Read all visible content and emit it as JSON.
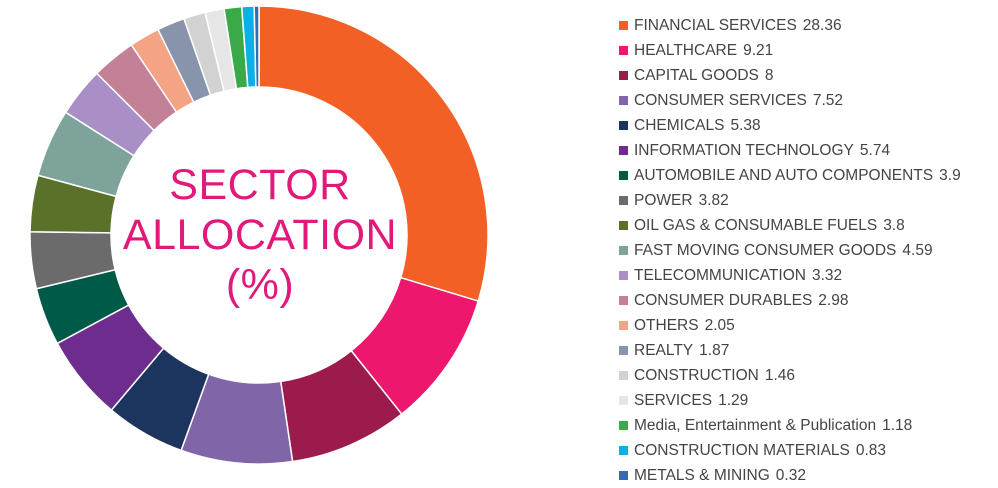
{
  "chart_data": {
    "type": "pie",
    "donut": true,
    "title": [
      "SECTOR",
      "ALLOCATION",
      "(%)"
    ],
    "legend_position": "right",
    "slices": [
      {
        "label": "FINANCIAL SERVICES",
        "value": 28.36,
        "color": "#f26025"
      },
      {
        "label": "HEALTHCARE",
        "value": 9.21,
        "color": "#ed176d"
      },
      {
        "label": "CAPITAL GOODS",
        "value": 8,
        "color": "#9b1b4d"
      },
      {
        "label": "CONSUMER SERVICES",
        "value": 7.52,
        "color": "#8065a8"
      },
      {
        "label": "CHEMICALS",
        "value": 5.38,
        "color": "#1c355e"
      },
      {
        "label": "INFORMATION TECHNOLOGY",
        "value": 5.74,
        "color": "#6d2c8e"
      },
      {
        "label": "AUTOMOBILE AND AUTO COMPONENTS",
        "value": 3.9,
        "color": "#005a48"
      },
      {
        "label": "POWER",
        "value": 3.82,
        "color": "#6b6b6b"
      },
      {
        "label": "OIL GAS & CONSUMABLE FUELS",
        "value": 3.8,
        "color": "#5a7129"
      },
      {
        "label": "FAST MOVING CONSUMER GOODS",
        "value": 4.59,
        "color": "#7ea39a"
      },
      {
        "label": "TELECOMMUNICATION",
        "value": 3.32,
        "color": "#a98fc6"
      },
      {
        "label": "CONSUMER DURABLES",
        "value": 2.98,
        "color": "#c28196"
      },
      {
        "label": "OTHERS",
        "value": 2.05,
        "color": "#f5a385"
      },
      {
        "label": "REALTY",
        "value": 1.87,
        "color": "#8794ab"
      },
      {
        "label": "CONSTRUCTION",
        "value": 1.46,
        "color": "#d2d2d2"
      },
      {
        "label": "SERVICES",
        "value": 1.29,
        "color": "#e6e6e6"
      },
      {
        "label": "Media, Entertainment & Publication",
        "value": 1.18,
        "color": "#3aaa49"
      },
      {
        "label": "CONSTRUCTION MATERIALS",
        "value": 0.83,
        "color": "#0ab0e6"
      },
      {
        "label": "METALS & MINING",
        "value": 0.32,
        "color": "#2e6db3"
      }
    ]
  }
}
